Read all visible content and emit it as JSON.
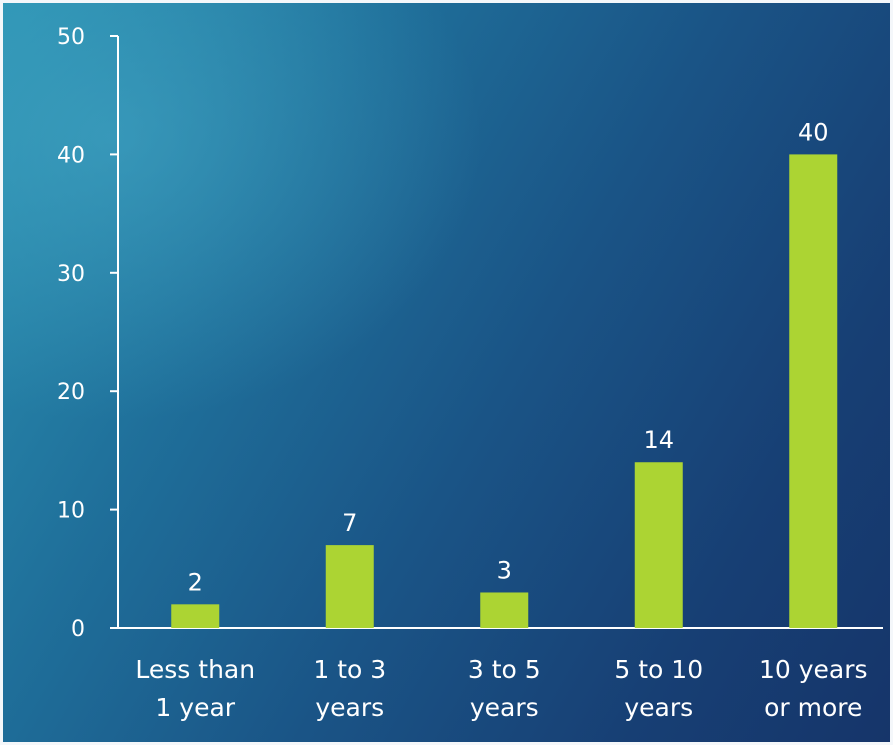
{
  "chart_data": {
    "type": "bar",
    "categories": [
      [
        "Less than",
        "1 year"
      ],
      [
        "1 to 3",
        "years"
      ],
      [
        "3 to 5",
        "years"
      ],
      [
        "5 to 10",
        "years"
      ],
      [
        "10 years",
        "or more"
      ]
    ],
    "values": [
      2,
      7,
      3,
      14,
      40
    ],
    "data_labels": [
      "2",
      "7",
      "3",
      "14",
      "40"
    ],
    "title": "",
    "xlabel": "",
    "ylabel": "",
    "ylim": [
      0,
      50
    ],
    "yticks": [
      0,
      10,
      20,
      30,
      40,
      50
    ],
    "grid": false,
    "legend": "none",
    "colors": {
      "bar": "#acd433",
      "axis": "#ffffff",
      "text": "#ffffff"
    }
  }
}
